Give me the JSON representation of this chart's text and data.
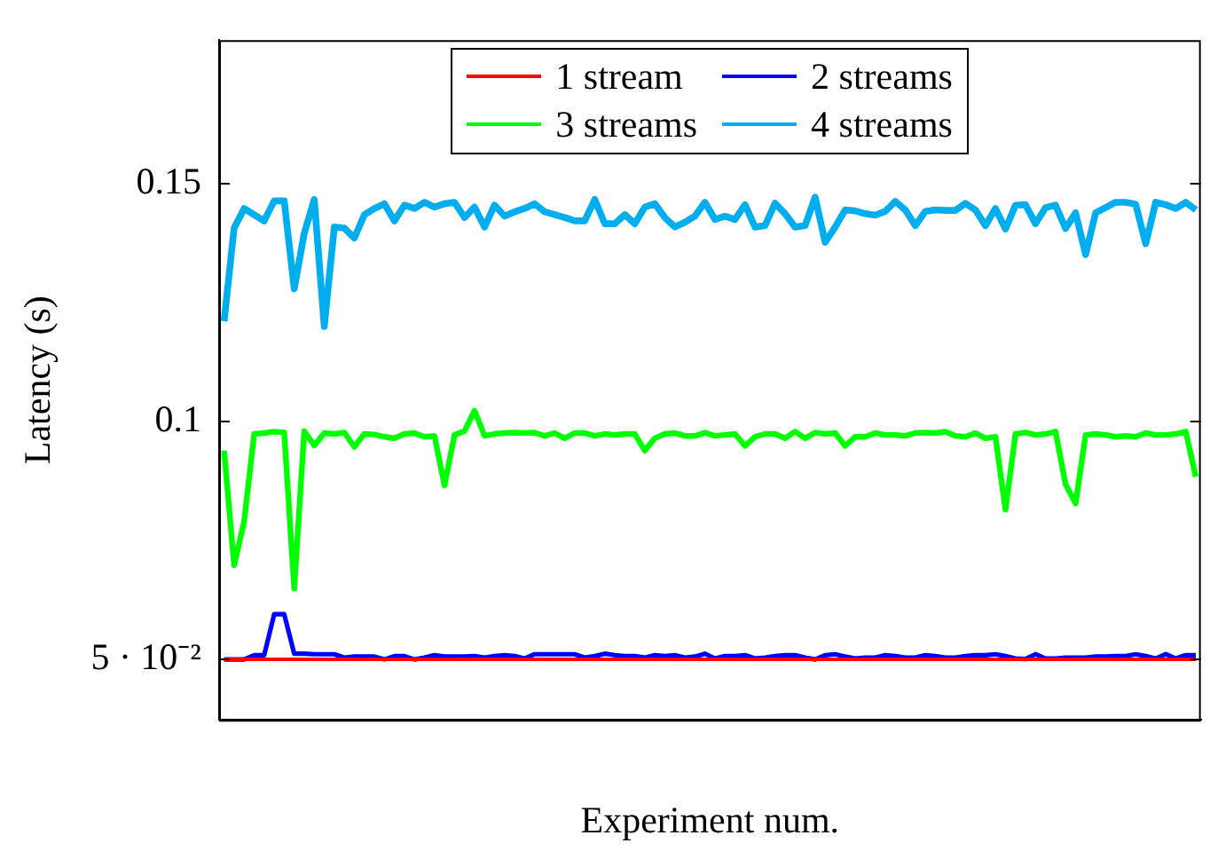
{
  "chart_data": {
    "type": "line",
    "xlabel": "Experiment num.",
    "ylabel": "Latency (s)",
    "categories": [
      null,
      null,
      null,
      null,
      null,
      null,
      null,
      null,
      null,
      null,
      null,
      null,
      null,
      null,
      null,
      null,
      null,
      null,
      null,
      null,
      null,
      null,
      null,
      null,
      null,
      null,
      null,
      null,
      null,
      null,
      null,
      null,
      null,
      null,
      null,
      null,
      null,
      null,
      null,
      null,
      null,
      null,
      null,
      null,
      null,
      null,
      null,
      null,
      null,
      null,
      null,
      null,
      null,
      null,
      null,
      null,
      null,
      null,
      null,
      null,
      null,
      null,
      null,
      null,
      null,
      null,
      null,
      null,
      null,
      null,
      null,
      null,
      null,
      null,
      null,
      null,
      null,
      null,
      null,
      null,
      null,
      null,
      null,
      null,
      null,
      null,
      null,
      null,
      null,
      null,
      null,
      null,
      null,
      null,
      null,
      null,
      null,
      null
    ],
    "ylim": [
      0.0373,
      0.1802
    ],
    "yticks": [
      {
        "value": 0.05,
        "label": "5 · 10⁻²"
      },
      0.1,
      0.15
    ],
    "grid": false,
    "legend": "top",
    "marker": "none",
    "line_style": "solid",
    "series": [
      {
        "name": "1 stream",
        "color": "#ff0000",
        "values": [
          0.05,
          0.05,
          0.05,
          0.05,
          0.05,
          0.05,
          0.05,
          0.05,
          0.05,
          0.05,
          0.05,
          0.05,
          0.05,
          0.05,
          0.05,
          0.05,
          0.05,
          0.05,
          0.05,
          0.05,
          0.05,
          0.05,
          0.05,
          0.05,
          0.05,
          0.05,
          0.05,
          0.05,
          0.05,
          0.05,
          0.05,
          0.05,
          0.05,
          0.05,
          0.05,
          0.05,
          0.05,
          0.05,
          0.05,
          0.05,
          0.05,
          0.05,
          0.05,
          0.05,
          0.05,
          0.05,
          0.05,
          0.05,
          0.05,
          0.05,
          0.05,
          0.05,
          0.05,
          0.05,
          0.05,
          0.05,
          0.05,
          0.05,
          0.05,
          0.05,
          0.05,
          0.05,
          0.05,
          0.05,
          0.05,
          0.05,
          0.05,
          0.05,
          0.05,
          0.05,
          0.05,
          0.05,
          0.05,
          0.05,
          0.05,
          0.05,
          0.05,
          0.05,
          0.05,
          0.05,
          0.05,
          0.05,
          0.05,
          0.05,
          0.05,
          0.05,
          0.05,
          0.05,
          0.05,
          0.05,
          0.05,
          0.05,
          0.05,
          0.05,
          0.05,
          0.05,
          0.05,
          0.05
        ]
      },
      {
        "name": "2 streams",
        "color": "#0000ff",
        "values": [
          0.05,
          0.05,
          0.05,
          0.0509,
          0.0509,
          0.0595,
          0.0595,
          0.0512,
          0.0512,
          0.0511,
          0.0511,
          0.0511,
          0.0504,
          0.0506,
          0.0506,
          0.0506,
          0.05,
          0.0507,
          0.0507,
          0.05,
          0.0504,
          0.0509,
          0.0506,
          0.0506,
          0.0506,
          0.0507,
          0.0504,
          0.0507,
          0.0509,
          0.0507,
          0.0502,
          0.0511,
          0.0511,
          0.0511,
          0.0511,
          0.0511,
          0.0504,
          0.0507,
          0.0512,
          0.0509,
          0.0507,
          0.0507,
          0.0504,
          0.0509,
          0.0507,
          0.0509,
          0.0504,
          0.0506,
          0.0512,
          0.0502,
          0.0507,
          0.0507,
          0.0509,
          0.0502,
          0.0504,
          0.0507,
          0.0509,
          0.0509,
          0.0504,
          0.05,
          0.0509,
          0.0511,
          0.0506,
          0.0502,
          0.0504,
          0.0504,
          0.0509,
          0.0507,
          0.0504,
          0.0504,
          0.0509,
          0.0507,
          0.0504,
          0.0504,
          0.0507,
          0.0509,
          0.0509,
          0.0511,
          0.0507,
          0.0502,
          0.0501,
          0.0511,
          0.0502,
          0.0502,
          0.0504,
          0.0504,
          0.0504,
          0.0506,
          0.0506,
          0.0507,
          0.0507,
          0.0511,
          0.0507,
          0.0502,
          0.0511,
          0.0502,
          0.0509,
          0.0509
        ]
      },
      {
        "name": "3 streams",
        "color": "#00ff00",
        "values": [
          0.0939,
          0.0698,
          0.079,
          0.0974,
          0.0976,
          0.0979,
          0.0977,
          0.0649,
          0.098,
          0.095,
          0.0976,
          0.0974,
          0.0977,
          0.0947,
          0.0974,
          0.0973,
          0.0968,
          0.0965,
          0.0974,
          0.0976,
          0.0968,
          0.097,
          0.0866,
          0.0972,
          0.098,
          0.1023,
          0.097,
          0.0974,
          0.0976,
          0.0977,
          0.0976,
          0.0977,
          0.097,
          0.0976,
          0.0965,
          0.0976,
          0.0976,
          0.097,
          0.0974,
          0.0972,
          0.0974,
          0.0974,
          0.0939,
          0.0965,
          0.0974,
          0.0976,
          0.097,
          0.097,
          0.0977,
          0.097,
          0.0972,
          0.0974,
          0.0949,
          0.0968,
          0.0974,
          0.0974,
          0.0965,
          0.0979,
          0.0965,
          0.0977,
          0.0974,
          0.0976,
          0.0949,
          0.0968,
          0.0968,
          0.0976,
          0.0972,
          0.0972,
          0.097,
          0.0976,
          0.0977,
          0.0976,
          0.0979,
          0.097,
          0.0968,
          0.0976,
          0.0965,
          0.0968,
          0.0815,
          0.0974,
          0.0977,
          0.0972,
          0.0974,
          0.0979,
          0.0868,
          0.0828,
          0.0972,
          0.0974,
          0.0972,
          0.0968,
          0.097,
          0.0968,
          0.0976,
          0.0972,
          0.0972,
          0.0974,
          0.0979,
          0.0884
        ]
      },
      {
        "name": "4 streams",
        "color": "#00aeef",
        "values": [
          0.1211,
          0.1407,
          0.1448,
          0.1435,
          0.1422,
          0.1464,
          0.1464,
          0.1279,
          0.1396,
          0.1467,
          0.12,
          0.1409,
          0.1407,
          0.1386,
          0.1435,
          0.1448,
          0.1458,
          0.1422,
          0.1455,
          0.1448,
          0.1461,
          0.1451,
          0.1458,
          0.1461,
          0.1429,
          0.1451,
          0.1409,
          0.1455,
          0.1432,
          0.1441,
          0.1448,
          0.1458,
          0.1441,
          0.1435,
          0.1429,
          0.1422,
          0.1422,
          0.1467,
          0.1416,
          0.1416,
          0.1435,
          0.1416,
          0.1451,
          0.1458,
          0.1429,
          0.1409,
          0.1419,
          0.1432,
          0.1461,
          0.1425,
          0.1432,
          0.1425,
          0.1456,
          0.1409,
          0.1412,
          0.1459,
          0.1437,
          0.1409,
          0.1412,
          0.1472,
          0.1377,
          0.1409,
          0.1445,
          0.1443,
          0.1437,
          0.1434,
          0.1442,
          0.1463,
          0.1445,
          0.1412,
          0.1442,
          0.1445,
          0.1444,
          0.1444,
          0.1459,
          0.1445,
          0.1412,
          0.1448,
          0.1405,
          0.1455,
          0.1456,
          0.1416,
          0.145,
          0.1455,
          0.1406,
          0.1439,
          0.1351,
          0.1439,
          0.145,
          0.1461,
          0.1461,
          0.1457,
          0.1374,
          0.1461,
          0.1456,
          0.1448,
          0.1461,
          0.1445
        ]
      }
    ]
  }
}
